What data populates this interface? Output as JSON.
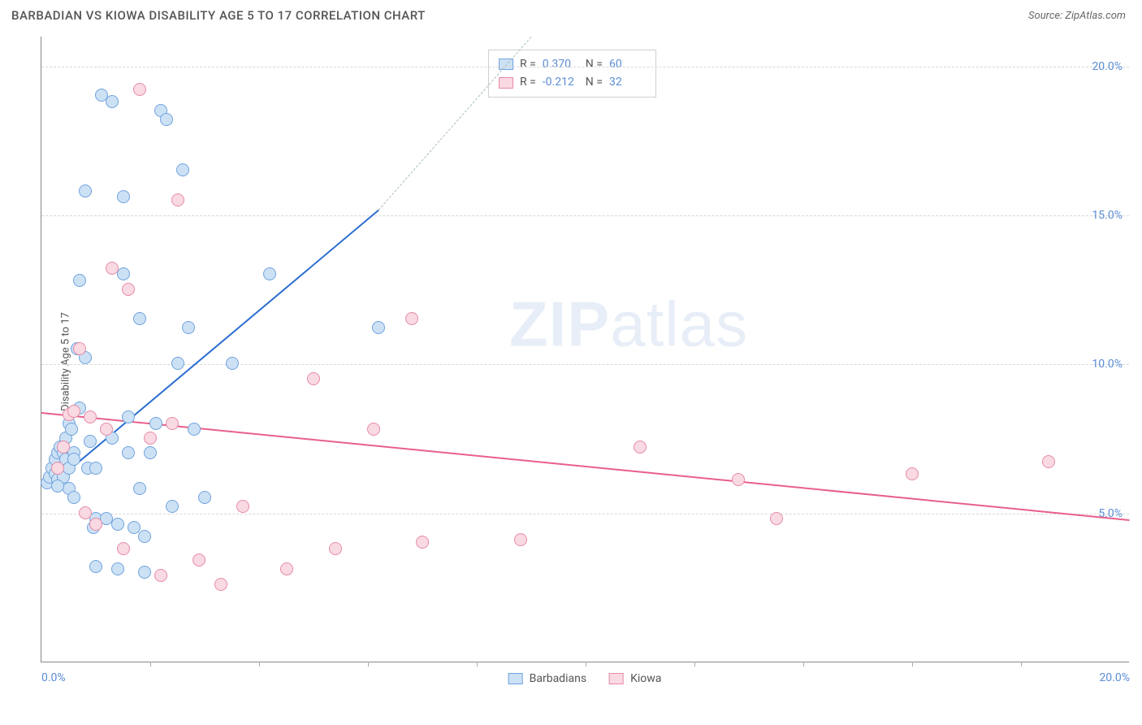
{
  "header": {
    "title": "BARBADIAN VS KIOWA DISABILITY AGE 5 TO 17 CORRELATION CHART",
    "source": "Source: ZipAtlas.com"
  },
  "chart": {
    "type": "scatter",
    "y_axis_label": "Disability Age 5 to 17",
    "xlim": [
      0,
      20
    ],
    "ylim": [
      0,
      21
    ],
    "x_ticks": [
      0,
      20
    ],
    "x_tick_labels": [
      "0.0%",
      "20.0%"
    ],
    "x_minor_ticks": [
      2,
      4,
      6,
      8,
      10,
      12,
      14,
      16,
      18
    ],
    "y_ticks": [
      5,
      10,
      15,
      20
    ],
    "y_tick_labels": [
      "5.0%",
      "10.0%",
      "15.0%",
      "20.0%"
    ],
    "background_color": "#ffffff",
    "grid_color": "#d8d8d8",
    "axis_color": "#888888",
    "tick_label_color": "#5b8dd6",
    "watermark": "ZIPatlas",
    "series": [
      {
        "name": "Barbadians",
        "fill": "#cde1f5",
        "stroke": "#6fa3dd",
        "marker_size": 16,
        "r": "0.370",
        "n": "60",
        "trend": {
          "x1": 0.2,
          "y1": 6.0,
          "x2": 6.2,
          "y2": 15.2,
          "color": "#2b6dd0",
          "dash_to_x": 9.0,
          "dash_to_y": 21.0,
          "dash_color": "#a8bfb8"
        },
        "points": [
          [
            0.1,
            6.0
          ],
          [
            0.15,
            6.2
          ],
          [
            0.2,
            6.5
          ],
          [
            0.25,
            6.3
          ],
          [
            0.25,
            6.8
          ],
          [
            0.3,
            6.1
          ],
          [
            0.3,
            7.0
          ],
          [
            0.35,
            7.2
          ],
          [
            0.35,
            6.5
          ],
          [
            0.4,
            7.0
          ],
          [
            0.4,
            6.2
          ],
          [
            0.45,
            7.5
          ],
          [
            0.45,
            6.8
          ],
          [
            0.5,
            8.0
          ],
          [
            0.5,
            6.5
          ],
          [
            0.55,
            7.8
          ],
          [
            0.6,
            7.0
          ],
          [
            0.6,
            6.8
          ],
          [
            0.65,
            10.5
          ],
          [
            0.7,
            8.5
          ],
          [
            0.7,
            12.8
          ],
          [
            0.8,
            15.8
          ],
          [
            0.8,
            10.2
          ],
          [
            0.85,
            6.5
          ],
          [
            0.9,
            7.4
          ],
          [
            0.95,
            4.5
          ],
          [
            1.0,
            4.8
          ],
          [
            1.0,
            6.5
          ],
          [
            1.1,
            19.0
          ],
          [
            1.2,
            4.8
          ],
          [
            1.3,
            18.8
          ],
          [
            1.3,
            7.5
          ],
          [
            1.4,
            4.6
          ],
          [
            1.5,
            15.6
          ],
          [
            1.5,
            13.0
          ],
          [
            1.6,
            7.0
          ],
          [
            1.6,
            8.2
          ],
          [
            1.7,
            4.5
          ],
          [
            1.8,
            5.8
          ],
          [
            1.8,
            11.5
          ],
          [
            1.9,
            4.2
          ],
          [
            2.0,
            7.0
          ],
          [
            2.1,
            8.0
          ],
          [
            2.2,
            18.5
          ],
          [
            2.3,
            18.2
          ],
          [
            2.4,
            5.2
          ],
          [
            2.5,
            10.0
          ],
          [
            2.6,
            16.5
          ],
          [
            2.7,
            11.2
          ],
          [
            2.8,
            7.8
          ],
          [
            3.0,
            5.5
          ],
          [
            3.5,
            10.0
          ],
          [
            4.2,
            13.0
          ],
          [
            1.0,
            3.2
          ],
          [
            1.4,
            3.1
          ],
          [
            1.9,
            3.0
          ],
          [
            6.2,
            11.2
          ],
          [
            0.5,
            5.8
          ],
          [
            0.6,
            5.5
          ],
          [
            0.3,
            5.9
          ]
        ]
      },
      {
        "name": "Kiowa",
        "fill": "#f9d9e2",
        "stroke": "#e68ba8",
        "marker_size": 16,
        "r": "-0.212",
        "n": "32",
        "trend": {
          "x1": 0.0,
          "y1": 8.4,
          "x2": 20.0,
          "y2": 4.8,
          "color": "#e85f8b"
        },
        "points": [
          [
            0.3,
            6.5
          ],
          [
            0.4,
            7.2
          ],
          [
            0.5,
            8.3
          ],
          [
            0.6,
            8.4
          ],
          [
            0.7,
            10.5
          ],
          [
            0.9,
            8.2
          ],
          [
            1.0,
            4.6
          ],
          [
            1.2,
            7.8
          ],
          [
            1.3,
            13.2
          ],
          [
            1.5,
            3.8
          ],
          [
            1.6,
            12.5
          ],
          [
            1.8,
            19.2
          ],
          [
            2.0,
            7.5
          ],
          [
            2.2,
            2.9
          ],
          [
            2.4,
            8.0
          ],
          [
            2.5,
            15.5
          ],
          [
            2.9,
            3.4
          ],
          [
            3.3,
            2.6
          ],
          [
            3.7,
            5.2
          ],
          [
            4.5,
            3.1
          ],
          [
            5.0,
            9.5
          ],
          [
            5.4,
            3.8
          ],
          [
            6.1,
            7.8
          ],
          [
            6.8,
            11.5
          ],
          [
            7.0,
            4.0
          ],
          [
            8.8,
            4.1
          ],
          [
            11.0,
            7.2
          ],
          [
            12.8,
            6.1
          ],
          [
            13.5,
            4.8
          ],
          [
            16.0,
            6.3
          ],
          [
            18.5,
            6.7
          ],
          [
            0.8,
            5.0
          ]
        ]
      }
    ]
  },
  "legend_top": {
    "rows": [
      {
        "swatch_fill": "#cde1f5",
        "swatch_stroke": "#6fa3dd",
        "r_label": "R =",
        "r_val": "0.370",
        "n_label": "N =",
        "n_val": "60"
      },
      {
        "swatch_fill": "#f9d9e2",
        "swatch_stroke": "#e68ba8",
        "r_label": "R =",
        "r_val": "-0.212",
        "n_label": "N =",
        "n_val": "32"
      }
    ]
  },
  "legend_bottom": {
    "items": [
      {
        "swatch_fill": "#cde1f5",
        "swatch_stroke": "#6fa3dd",
        "label": "Barbadians"
      },
      {
        "swatch_fill": "#f9d9e2",
        "swatch_stroke": "#e68ba8",
        "label": "Kiowa"
      }
    ]
  }
}
